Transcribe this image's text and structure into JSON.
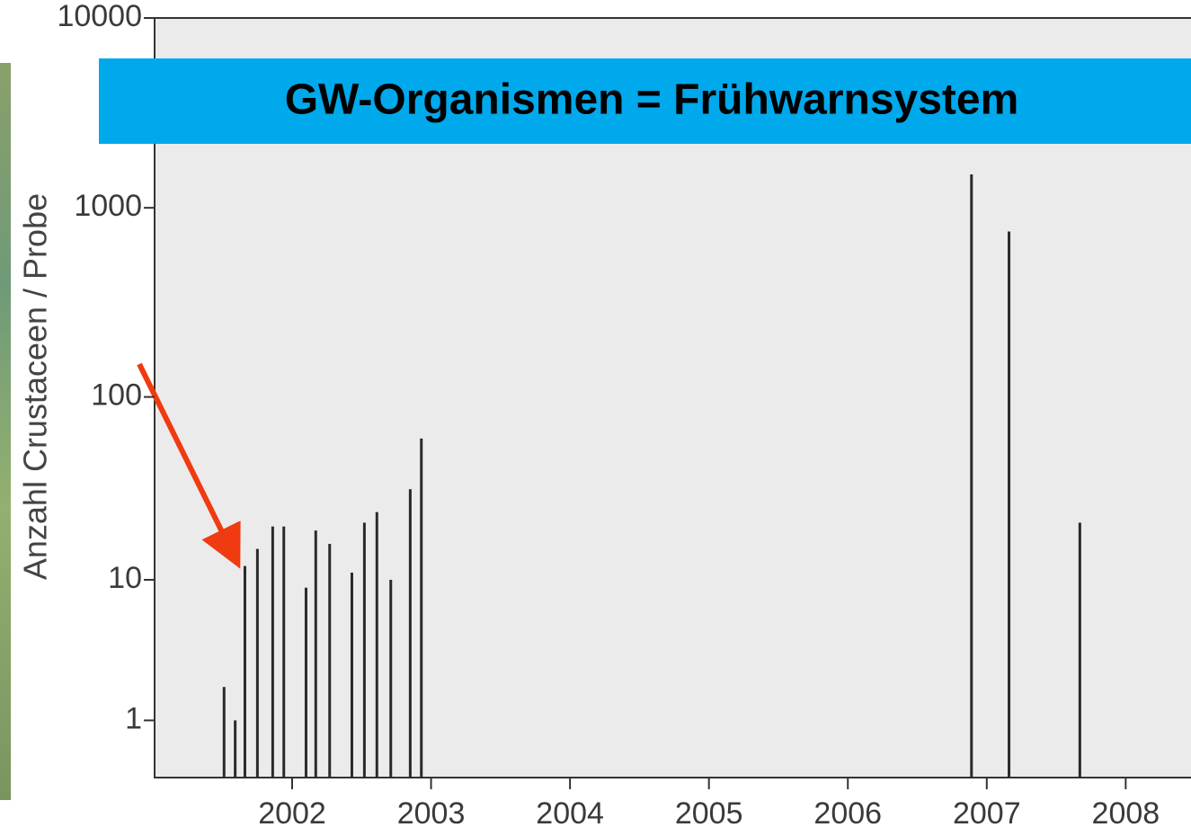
{
  "chart_data": {
    "type": "bar",
    "title": "GW-Organismen = Frühwarnsystem",
    "y_label": "Anzahl Crustaceen / Probe",
    "x": [
      2001.51,
      2001.59,
      2001.66,
      2001.75,
      2001.86,
      2001.94,
      2002.1,
      2002.17,
      2002.27,
      2002.43,
      2002.52,
      2002.61,
      2002.71,
      2002.85,
      2002.93,
      2006.89,
      2007.16,
      2007.67
    ],
    "values": [
      2,
      1,
      12,
      15,
      20,
      20,
      9,
      19,
      16,
      11,
      21,
      24,
      10,
      32,
      60,
      1500,
      750,
      21
    ],
    "color": "#2a2a2a",
    "xlim": [
      2001.01,
      2008.47
    ],
    "xticks": [
      2002,
      2003,
      2004,
      2005,
      2006,
      2007,
      2008
    ],
    "ylim": [
      0,
      10000
    ],
    "yticks": [
      1,
      10,
      100,
      1000,
      10000
    ],
    "yscale": "log1p"
  }
}
